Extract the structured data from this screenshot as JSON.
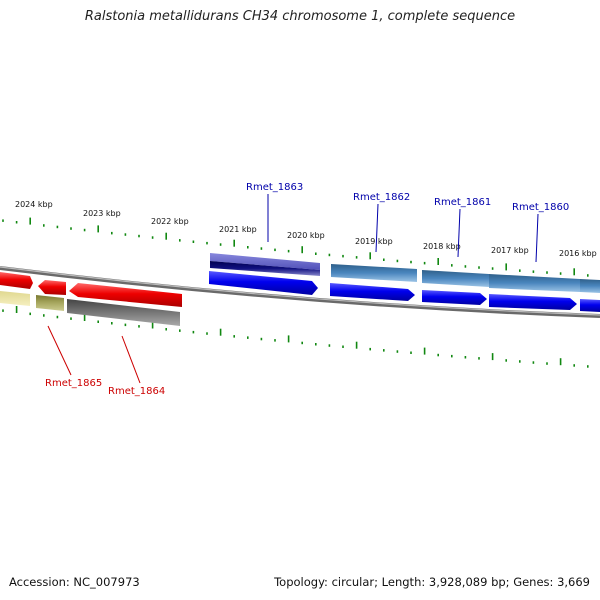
{
  "title": "Ralstonia metallidurans CH34 chromosome 1, complete sequence",
  "footer": {
    "accession": "Accession: NC_007973",
    "topology": "Topology: circular; Length: 3,928,089 bp; Genes: 3,669"
  },
  "scale": {
    "unit": "kbp",
    "labels": [
      "2024 kbp",
      "2023 kbp",
      "2022 kbp",
      "2021 kbp",
      "2020 kbp",
      "2019 kbp",
      "2018 kbp",
      "2017 kbp",
      "2016 kbp"
    ]
  },
  "genes": {
    "forward": [
      {
        "label": "Rmet_1863",
        "color": "#1a1aa6"
      },
      {
        "label": "Rmet_1862",
        "color": "#3a78b0"
      },
      {
        "label": "Rmet_1861",
        "color": "#3a78b0"
      },
      {
        "label": "Rmet_1860",
        "color": "#3a78b0"
      }
    ],
    "reverse": [
      {
        "label": "Rmet_1865",
        "color": "#c00000"
      },
      {
        "label": "Rmet_1864",
        "color": "#c00000"
      }
    ]
  },
  "colors": {
    "cds_reverse": "#ee0000",
    "cds_forward": "#0000ee",
    "backbone": "#888888",
    "tick": "#118811",
    "forward_label": "#0000aa",
    "reverse_label": "#cc0000"
  }
}
